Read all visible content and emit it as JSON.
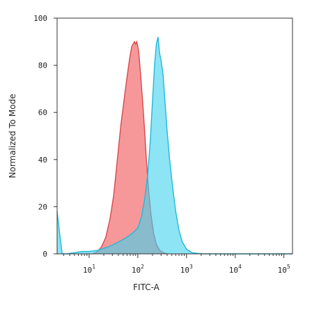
{
  "chart_data": {
    "type": "area",
    "title": "",
    "xlabel": "FITC-A",
    "ylabel": "Normalized To Mode",
    "xscale": "log",
    "xlim": [
      2.2,
      150000
    ],
    "ylim": [
      0,
      100
    ],
    "yticks": [
      0,
      20,
      40,
      60,
      80,
      100
    ],
    "xticks": [
      {
        "value": 10,
        "base": "10",
        "exp": "1"
      },
      {
        "value": 100,
        "base": "10",
        "exp": "2"
      },
      {
        "value": 1000,
        "base": "10",
        "exp": "3"
      },
      {
        "value": 10000,
        "base": "10",
        "exp": "4"
      },
      {
        "value": 100000,
        "base": "10",
        "exp": "5"
      }
    ],
    "series": [
      {
        "color_fill": "#f47b7e",
        "color_line": "#d8484c",
        "x": [
          12,
          15,
          18,
          22,
          27,
          32,
          38,
          45,
          52,
          60,
          68,
          75,
          80,
          85,
          90,
          95,
          100,
          105,
          110,
          118,
          127,
          138,
          150,
          165,
          185,
          210,
          240,
          280,
          330,
          400
        ],
        "y": [
          0,
          1,
          3,
          7,
          15,
          25,
          40,
          55,
          65,
          75,
          83,
          88,
          89,
          90,
          89,
          90,
          88,
          85,
          80,
          72,
          63,
          52,
          40,
          28,
          17,
          9,
          4,
          1.5,
          0.5,
          0
        ]
      },
      {
        "color_fill": "#3fd2ef",
        "color_line": "#23b8d6",
        "x": [
          2.2,
          2.5,
          2.8,
          3.5,
          5,
          7,
          10,
          15,
          25,
          40,
          60,
          80,
          100,
          120,
          140,
          160,
          180,
          200,
          220,
          240,
          260,
          280,
          300,
          330,
          360,
          400,
          450,
          520,
          600,
          700,
          820,
          1000,
          1300,
          1700,
          2200,
          3000,
          150000
        ],
        "y": [
          18,
          8,
          0,
          0,
          0.5,
          1,
          1,
          1.5,
          3,
          5,
          7,
          9,
          11,
          16,
          24,
          34,
          48,
          65,
          80,
          89,
          92,
          85,
          82,
          76,
          65,
          52,
          40,
          28,
          18,
          10,
          5,
          2,
          0.5,
          0.2,
          0,
          0,
          0
        ]
      }
    ]
  }
}
